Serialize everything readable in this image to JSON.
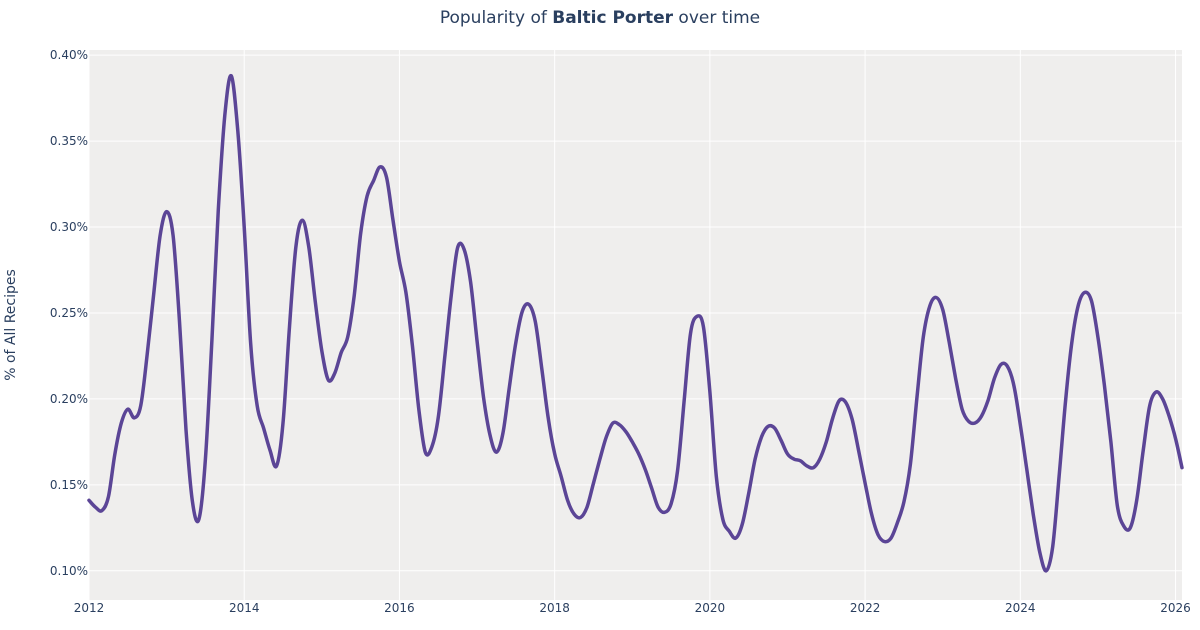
{
  "chart_data": {
    "type": "line",
    "title_prefix": "Popularity of ",
    "title_bold": "Baltic Porter",
    "title_suffix": " over time",
    "xlabel": "",
    "ylabel": "% of All Recipes",
    "series": [
      {
        "color": "#5b4596",
        "points": [
          [
            "2012-01",
            0.141
          ],
          [
            "2012-02",
            0.137
          ],
          [
            "2012-03",
            0.135
          ],
          [
            "2012-04",
            0.143
          ],
          [
            "2012-05",
            0.168
          ],
          [
            "2012-06",
            0.186
          ],
          [
            "2012-07",
            0.194
          ],
          [
            "2012-08",
            0.189
          ],
          [
            "2012-09",
            0.196
          ],
          [
            "2012-10",
            0.226
          ],
          [
            "2012-11",
            0.261
          ],
          [
            "2012-12",
            0.295
          ],
          [
            "2013-01",
            0.309
          ],
          [
            "2013-02",
            0.295
          ],
          [
            "2013-03",
            0.245
          ],
          [
            "2013-04",
            0.182
          ],
          [
            "2013-05",
            0.14
          ],
          [
            "2013-06",
            0.13
          ],
          [
            "2013-07",
            0.165
          ],
          [
            "2013-08",
            0.234
          ],
          [
            "2013-09",
            0.31
          ],
          [
            "2013-10",
            0.365
          ],
          [
            "2013-11",
            0.388
          ],
          [
            "2013-12",
            0.356
          ],
          [
            "2014-01",
            0.3
          ],
          [
            "2014-02",
            0.232
          ],
          [
            "2014-03",
            0.196
          ],
          [
            "2014-04",
            0.183
          ],
          [
            "2014-05",
            0.17
          ],
          [
            "2014-06",
            0.161
          ],
          [
            "2014-07",
            0.186
          ],
          [
            "2014-08",
            0.242
          ],
          [
            "2014-09",
            0.289
          ],
          [
            "2014-10",
            0.304
          ],
          [
            "2014-11",
            0.288
          ],
          [
            "2014-12",
            0.256
          ],
          [
            "2015-01",
            0.228
          ],
          [
            "2015-02",
            0.211
          ],
          [
            "2015-03",
            0.215
          ],
          [
            "2015-04",
            0.227
          ],
          [
            "2015-05",
            0.236
          ],
          [
            "2015-06",
            0.26
          ],
          [
            "2015-07",
            0.296
          ],
          [
            "2015-08",
            0.318
          ],
          [
            "2015-09",
            0.327
          ],
          [
            "2015-10",
            0.335
          ],
          [
            "2015-11",
            0.329
          ],
          [
            "2015-12",
            0.304
          ],
          [
            "2016-01",
            0.28
          ],
          [
            "2016-02",
            0.262
          ],
          [
            "2016-03",
            0.231
          ],
          [
            "2016-04",
            0.194
          ],
          [
            "2016-05",
            0.169
          ],
          [
            "2016-06",
            0.172
          ],
          [
            "2016-07",
            0.189
          ],
          [
            "2016-08",
            0.224
          ],
          [
            "2016-09",
            0.26
          ],
          [
            "2016-10",
            0.288
          ],
          [
            "2016-11",
            0.287
          ],
          [
            "2016-12",
            0.268
          ],
          [
            "2017-01",
            0.234
          ],
          [
            "2017-02",
            0.201
          ],
          [
            "2017-03",
            0.179
          ],
          [
            "2017-04",
            0.169
          ],
          [
            "2017-05",
            0.18
          ],
          [
            "2017-06",
            0.207
          ],
          [
            "2017-07",
            0.233
          ],
          [
            "2017-08",
            0.251
          ],
          [
            "2017-09",
            0.255
          ],
          [
            "2017-10",
            0.245
          ],
          [
            "2017-11",
            0.218
          ],
          [
            "2017-12",
            0.189
          ],
          [
            "2018-01",
            0.168
          ],
          [
            "2018-02",
            0.155
          ],
          [
            "2018-03",
            0.141
          ],
          [
            "2018-04",
            0.133
          ],
          [
            "2018-05",
            0.131
          ],
          [
            "2018-06",
            0.137
          ],
          [
            "2018-07",
            0.151
          ],
          [
            "2018-08",
            0.165
          ],
          [
            "2018-09",
            0.178
          ],
          [
            "2018-10",
            0.186
          ],
          [
            "2018-11",
            0.185
          ],
          [
            "2018-12",
            0.181
          ],
          [
            "2019-01",
            0.175
          ],
          [
            "2019-02",
            0.168
          ],
          [
            "2019-03",
            0.159
          ],
          [
            "2019-04",
            0.148
          ],
          [
            "2019-05",
            0.137
          ],
          [
            "2019-06",
            0.134
          ],
          [
            "2019-07",
            0.139
          ],
          [
            "2019-08",
            0.158
          ],
          [
            "2019-09",
            0.198
          ],
          [
            "2019-10",
            0.238
          ],
          [
            "2019-11",
            0.248
          ],
          [
            "2019-12",
            0.242
          ],
          [
            "2020-01",
            0.204
          ],
          [
            "2020-02",
            0.155
          ],
          [
            "2020-03",
            0.13
          ],
          [
            "2020-04",
            0.123
          ],
          [
            "2020-05",
            0.119
          ],
          [
            "2020-06",
            0.127
          ],
          [
            "2020-07",
            0.145
          ],
          [
            "2020-08",
            0.165
          ],
          [
            "2020-09",
            0.178
          ],
          [
            "2020-10",
            0.184
          ],
          [
            "2020-11",
            0.183
          ],
          [
            "2020-12",
            0.176
          ],
          [
            "2021-01",
            0.168
          ],
          [
            "2021-02",
            0.165
          ],
          [
            "2021-03",
            0.164
          ],
          [
            "2021-04",
            0.161
          ],
          [
            "2021-05",
            0.16
          ],
          [
            "2021-06",
            0.165
          ],
          [
            "2021-07",
            0.175
          ],
          [
            "2021-08",
            0.189
          ],
          [
            "2021-09",
            0.199
          ],
          [
            "2021-10",
            0.198
          ],
          [
            "2021-11",
            0.188
          ],
          [
            "2021-12",
            0.17
          ],
          [
            "2022-01",
            0.151
          ],
          [
            "2022-02",
            0.133
          ],
          [
            "2022-03",
            0.121
          ],
          [
            "2022-04",
            0.117
          ],
          [
            "2022-05",
            0.119
          ],
          [
            "2022-06",
            0.128
          ],
          [
            "2022-07",
            0.14
          ],
          [
            "2022-08",
            0.162
          ],
          [
            "2022-09",
            0.2
          ],
          [
            "2022-10",
            0.236
          ],
          [
            "2022-11",
            0.254
          ],
          [
            "2022-12",
            0.259
          ],
          [
            "2023-01",
            0.252
          ],
          [
            "2023-02",
            0.233
          ],
          [
            "2023-03",
            0.212
          ],
          [
            "2023-04",
            0.194
          ],
          [
            "2023-05",
            0.187
          ],
          [
            "2023-06",
            0.186
          ],
          [
            "2023-07",
            0.19
          ],
          [
            "2023-08",
            0.199
          ],
          [
            "2023-09",
            0.212
          ],
          [
            "2023-10",
            0.22
          ],
          [
            "2023-11",
            0.219
          ],
          [
            "2023-12",
            0.208
          ],
          [
            "2024-01",
            0.185
          ],
          [
            "2024-02",
            0.159
          ],
          [
            "2024-03",
            0.133
          ],
          [
            "2024-04",
            0.111
          ],
          [
            "2024-05",
            0.1
          ],
          [
            "2024-06",
            0.114
          ],
          [
            "2024-07",
            0.155
          ],
          [
            "2024-08",
            0.199
          ],
          [
            "2024-09",
            0.234
          ],
          [
            "2024-10",
            0.255
          ],
          [
            "2024-11",
            0.262
          ],
          [
            "2024-12",
            0.257
          ],
          [
            "2025-01",
            0.236
          ],
          [
            "2025-02",
            0.208
          ],
          [
            "2025-03",
            0.175
          ],
          [
            "2025-04",
            0.138
          ],
          [
            "2025-05",
            0.126
          ],
          [
            "2025-06",
            0.125
          ],
          [
            "2025-07",
            0.141
          ],
          [
            "2025-08",
            0.17
          ],
          [
            "2025-09",
            0.196
          ],
          [
            "2025-10",
            0.204
          ],
          [
            "2025-11",
            0.2
          ],
          [
            "2025-12",
            0.19
          ],
          [
            "2026-01",
            0.177
          ],
          [
            "2026-02",
            0.16
          ]
        ]
      }
    ],
    "xlim": [
      "2012-01",
      "2026-02"
    ],
    "ylim": [
      0.083,
      0.403
    ],
    "xticks": [
      {
        "value": "2012-01",
        "label": "2012"
      },
      {
        "value": "2014-01",
        "label": "2014"
      },
      {
        "value": "2016-01",
        "label": "2016"
      },
      {
        "value": "2018-01",
        "label": "2018"
      },
      {
        "value": "2020-01",
        "label": "2020"
      },
      {
        "value": "2022-01",
        "label": "2022"
      },
      {
        "value": "2024-01",
        "label": "2024"
      },
      {
        "value": "2026-01",
        "label": "2026"
      }
    ],
    "yticks": [
      {
        "value": 0.1,
        "label": "0.10%"
      },
      {
        "value": 0.15,
        "label": "0.15%"
      },
      {
        "value": 0.2,
        "label": "0.20%"
      },
      {
        "value": 0.25,
        "label": "0.25%"
      },
      {
        "value": 0.3,
        "label": "0.30%"
      },
      {
        "value": 0.35,
        "label": "0.35%"
      },
      {
        "value": 0.4,
        "label": "0.40%"
      }
    ],
    "grid": true,
    "plot_background": "#efeeed",
    "grid_color": "#ffffff"
  }
}
